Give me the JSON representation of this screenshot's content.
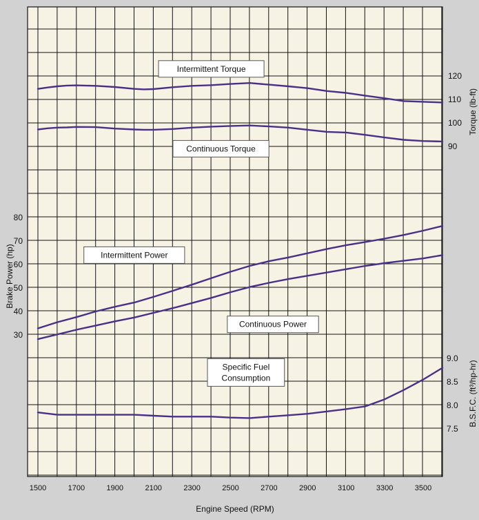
{
  "colors": {
    "background": "#d2d2d2",
    "plot_background": "#f6f3e5",
    "grid": "#111111",
    "series": "#4a2f88"
  },
  "chart_data": {
    "type": "line",
    "xlabel": "Engine Speed (RPM)",
    "xlim": [
      1500,
      3600
    ],
    "x_ticks": [
      "1500",
      "1700",
      "1900",
      "2100",
      "2300",
      "2500",
      "2700",
      "2900",
      "3100",
      "3300",
      "3500"
    ],
    "grid": true,
    "axes": {
      "torque": {
        "label": "Torque (lb-ft)",
        "ticks": [
          "90",
          "100",
          "110",
          "120"
        ],
        "ylim": [
          82,
          132
        ]
      },
      "power": {
        "label": "Brake Power (hp)",
        "ticks": [
          "30",
          "40",
          "50",
          "60",
          "70",
          "80"
        ],
        "ylim": [
          16,
          84
        ]
      },
      "bsfc": {
        "label": "B.S.F.C. (ft³/hp-hr)",
        "ticks": [
          "7.5",
          "8.0",
          "8.5",
          "9.0"
        ],
        "ylim": [
          7.2,
          9.2
        ]
      }
    },
    "series": [
      {
        "name": "Intermittent Torque",
        "axis": "torque",
        "label_pos": [
          2400,
          123
        ],
        "x": [
          1500,
          1550,
          1600,
          1650,
          1700,
          1800,
          1900,
          2000,
          2050,
          2100,
          2200,
          2300,
          2400,
          2500,
          2600,
          2700,
          2800,
          2900,
          3000,
          3100,
          3200,
          3300,
          3400,
          3500,
          3600
        ],
        "y": [
          114.5,
          115.1,
          115.6,
          115.9,
          116.0,
          115.8,
          115.3,
          114.5,
          114.3,
          114.4,
          115.2,
          115.8,
          116.1,
          116.6,
          117.0,
          116.3,
          115.6,
          114.8,
          113.6,
          112.8,
          111.6,
          110.5,
          109.3,
          109.0,
          108.7
        ]
      },
      {
        "name": "Continuous Torque",
        "axis": "torque",
        "label_pos": [
          2450,
          89
        ],
        "x": [
          1500,
          1550,
          1600,
          1650,
          1700,
          1800,
          1900,
          2000,
          2050,
          2100,
          2200,
          2300,
          2400,
          2500,
          2600,
          2700,
          2800,
          2900,
          3000,
          3100,
          3200,
          3300,
          3400,
          3500,
          3600
        ],
        "y": [
          97.2,
          97.7,
          98.0,
          98.1,
          98.3,
          98.2,
          97.6,
          97.2,
          97.1,
          97.1,
          97.4,
          98.0,
          98.4,
          98.7,
          98.9,
          98.5,
          98.0,
          97.1,
          96.2,
          95.9,
          94.9,
          93.8,
          92.8,
          92.3,
          92.1
        ]
      },
      {
        "name": "Intermittent Power",
        "axis": "power",
        "label_pos": [
          2000,
          64
        ],
        "x": [
          1500,
          1600,
          1700,
          1800,
          1900,
          2000,
          2100,
          2200,
          2300,
          2400,
          2500,
          2600,
          2700,
          2800,
          2900,
          3000,
          3100,
          3200,
          3300,
          3400,
          3500,
          3600
        ],
        "y": [
          32.8,
          35.4,
          37.6,
          40.0,
          42.0,
          43.8,
          46.2,
          48.8,
          51.4,
          54.2,
          56.9,
          59.4,
          61.4,
          63.0,
          64.8,
          66.6,
          68.2,
          69.6,
          71.0,
          72.6,
          74.4,
          76.4
        ]
      },
      {
        "name": "Continuous Power",
        "axis": "power",
        "label_pos": [
          2720,
          34.5
        ],
        "x": [
          1500,
          1600,
          1700,
          1800,
          1900,
          2000,
          2100,
          2200,
          2300,
          2400,
          2500,
          2600,
          2700,
          2800,
          2900,
          3000,
          3100,
          3200,
          3300,
          3400,
          3500,
          3600
        ],
        "y": [
          28.2,
          30.2,
          32.2,
          34.0,
          35.8,
          37.4,
          39.4,
          41.4,
          43.6,
          45.8,
          48.2,
          50.4,
          52.2,
          53.8,
          55.2,
          56.6,
          58.0,
          59.4,
          60.6,
          61.6,
          62.6,
          64.0
        ]
      },
      {
        "name": "Specific Fuel\nConsumption",
        "axis": "bsfc",
        "label_pos": [
          2580,
          8.7
        ],
        "x": [
          1500,
          1600,
          1700,
          1800,
          1900,
          2000,
          2100,
          2200,
          2300,
          2400,
          2500,
          2600,
          2700,
          2800,
          2900,
          3000,
          3100,
          3200,
          3300,
          3400,
          3500,
          3600
        ],
        "y": [
          7.85,
          7.8,
          7.8,
          7.8,
          7.8,
          7.8,
          7.78,
          7.76,
          7.76,
          7.76,
          7.74,
          7.73,
          7.76,
          7.79,
          7.82,
          7.87,
          7.92,
          7.98,
          8.13,
          8.33,
          8.55,
          8.8
        ]
      }
    ]
  }
}
